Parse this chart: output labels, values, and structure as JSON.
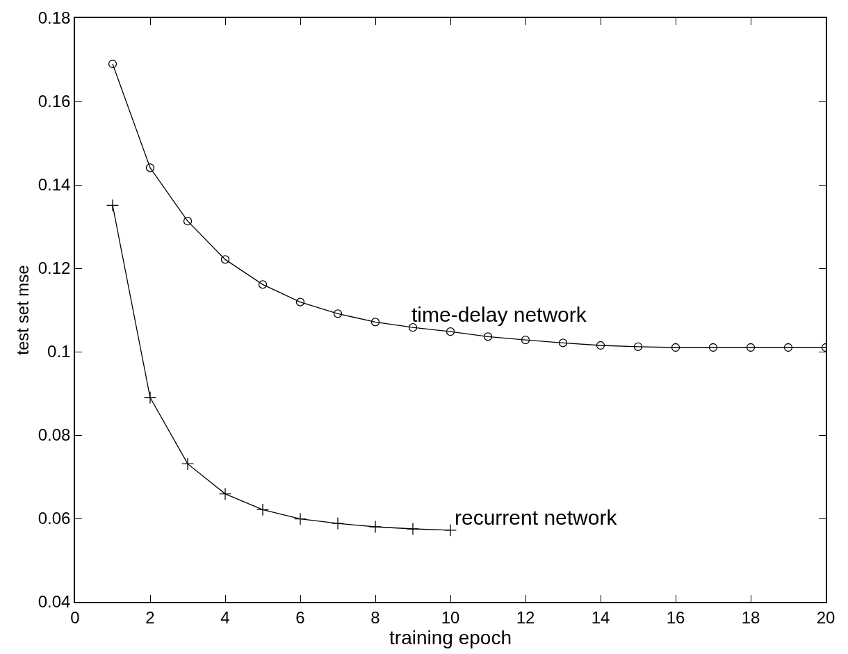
{
  "chart_data": {
    "type": "line",
    "xlabel": "training epoch",
    "ylabel": "test set mse",
    "xlim": [
      0,
      20
    ],
    "xticks": [
      0,
      2,
      4,
      6,
      8,
      10,
      12,
      14,
      16,
      18,
      20
    ],
    "ylim": [
      0.04,
      0.18
    ],
    "yticks": [
      0.04,
      0.06,
      0.08,
      0.1,
      0.12,
      0.14,
      0.16,
      0.18
    ],
    "line_style": "solid",
    "series": [
      {
        "color": "#000000",
        "marker": "circle",
        "x": [
          1,
          2,
          3,
          4,
          5,
          6,
          7,
          8,
          9,
          10,
          11,
          12,
          13,
          14,
          15,
          16,
          17,
          18,
          19,
          20
        ],
        "values": [
          0.169,
          0.1441,
          0.1313,
          0.1221,
          0.1161,
          0.1119,
          0.1091,
          0.1071,
          0.1058,
          0.1048,
          0.1036,
          0.1028,
          0.1021,
          0.1015,
          0.1012,
          0.101,
          0.101,
          0.101,
          0.101,
          0.101
        ]
      },
      {
        "color": "#000000",
        "marker": "cross",
        "x": [
          1,
          2,
          3,
          4,
          5,
          6,
          7,
          8,
          9,
          10
        ],
        "values": [
          0.1351,
          0.089,
          0.0731,
          0.0659,
          0.0621,
          0.0599,
          0.0588,
          0.058,
          0.0575,
          0.0572
        ]
      }
    ],
    "annotations": [
      "time-delay network",
      "recurrent network"
    ]
  }
}
